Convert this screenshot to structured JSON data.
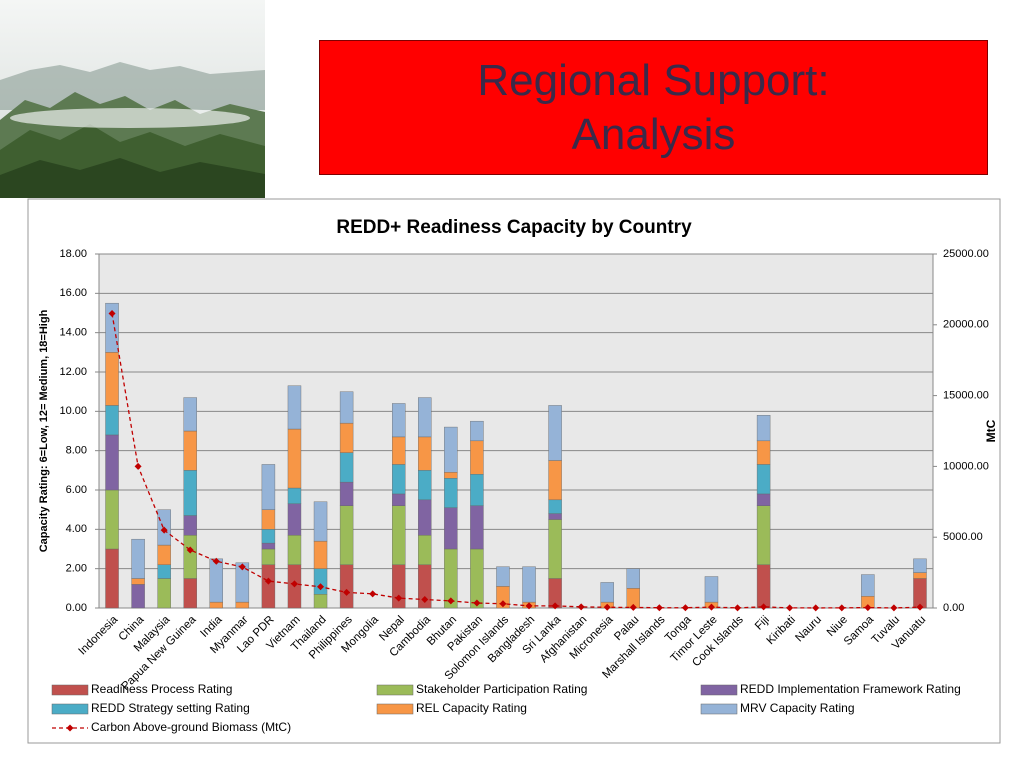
{
  "slide_title": "Regional Support: Analysis",
  "chart_data": {
    "type": "bar",
    "stacked": true,
    "title": "REDD+ Readiness Capacity by Country",
    "y_label": "Capacity Rating: 6=Low, 12= Medium, 18=High",
    "y2_label": "MtC",
    "categories": [
      "Indonesia",
      "China",
      "Malaysia",
      "Papua New Guinea",
      "India",
      "Myanmar",
      "Lao PDR",
      "Vietnam",
      "Thailand",
      "Philippines",
      "Mongolia",
      "Nepal",
      "Cambodia",
      "Bhutan",
      "Pakistan",
      "Solomon Islands",
      "Bangladesh",
      "Sri Lanka",
      "Afghanistan",
      "Micronesia",
      "Palau",
      "Marshall Islands",
      "Tonga",
      "Timor Leste",
      "Cook Islands",
      "Fiji",
      "Kiribati",
      "Nauru",
      "Niue",
      "Samoa",
      "Tuvalu",
      "Vanuatu"
    ],
    "ylim": [
      0,
      18
    ],
    "yticks": [
      {
        "value": 0,
        "label": "0.00"
      },
      {
        "value": 2,
        "label": "2.00"
      },
      {
        "value": 4,
        "label": "4.00"
      },
      {
        "value": 6,
        "label": "6.00"
      },
      {
        "value": 8,
        "label": "8.00"
      },
      {
        "value": 10,
        "label": "10.00"
      },
      {
        "value": 12,
        "label": "12.00"
      },
      {
        "value": 14,
        "label": "14.00"
      },
      {
        "value": 16,
        "label": "16.00"
      },
      {
        "value": 18,
        "label": "18.00"
      }
    ],
    "y2lim": [
      0,
      25000
    ],
    "y2ticks": [
      {
        "value": 0,
        "label": "0.00"
      },
      {
        "value": 5000,
        "label": "5000.00"
      },
      {
        "value": 10000,
        "label": "10000.00"
      },
      {
        "value": 15000,
        "label": "15000.00"
      },
      {
        "value": 20000,
        "label": "20000.00"
      },
      {
        "value": 25000,
        "label": "25000.00"
      }
    ],
    "grid": true,
    "legend": "bottom",
    "series": [
      {
        "name": "Readiness Process Rating",
        "color": "#c0504d",
        "values": [
          3,
          0,
          0,
          1.5,
          0,
          0,
          2.2,
          2.2,
          0,
          2.2,
          0,
          2.2,
          2.2,
          0,
          0,
          0,
          0,
          1.5,
          0,
          0,
          0,
          0,
          0,
          0,
          0,
          2.2,
          0,
          0,
          0,
          0,
          0,
          1.5
        ]
      },
      {
        "name": "Stakeholder Participation Rating",
        "color": "#9bbb59",
        "values": [
          3,
          0,
          1.5,
          2.2,
          0,
          0,
          0.8,
          1.5,
          0.7,
          3,
          0,
          3,
          1.5,
          3,
          3,
          0,
          0,
          3,
          0,
          0,
          0,
          0,
          0,
          0,
          0,
          3,
          0,
          0,
          0,
          0,
          0,
          0
        ]
      },
      {
        "name": "REDD Implementation Framework Rating",
        "color": "#8064a2",
        "values": [
          2.8,
          1.2,
          0,
          1,
          0,
          0,
          0.3,
          1.6,
          0,
          1.2,
          0,
          0.6,
          1.8,
          2.1,
          2.2,
          0,
          0,
          0.3,
          0,
          0,
          0,
          0,
          0,
          0,
          0,
          0.6,
          0,
          0,
          0,
          0,
          0,
          0
        ]
      },
      {
        "name": "REDD Strategy setting Rating",
        "color": "#4bacc6",
        "values": [
          1.5,
          0,
          0.7,
          2.3,
          0,
          0,
          0.7,
          0.8,
          1.3,
          1.5,
          0,
          1.5,
          1.5,
          1.5,
          1.6,
          0,
          0,
          0.7,
          0,
          0,
          0,
          0,
          0,
          0,
          0,
          1.5,
          0,
          0,
          0,
          0,
          0,
          0
        ]
      },
      {
        "name": "REL Capacity Rating",
        "color": "#f79646",
        "values": [
          2.7,
          0.3,
          1,
          2,
          0.3,
          0.3,
          1,
          3,
          1.4,
          1.5,
          0,
          1.4,
          1.7,
          0.3,
          1.7,
          1.1,
          0.3,
          2,
          0,
          0.3,
          1,
          0,
          0,
          0.3,
          0,
          1.2,
          0,
          0,
          0,
          0.6,
          0,
          0.3
        ]
      },
      {
        "name": "MRV Capacity Rating",
        "color": "#95b3d7",
        "values": [
          2.5,
          2,
          1.8,
          1.7,
          2.2,
          2,
          2.3,
          2.2,
          2,
          1.6,
          0,
          1.7,
          2,
          2.3,
          1,
          1,
          1.8,
          2.8,
          0,
          1,
          1,
          0,
          0,
          1.3,
          0,
          1.3,
          0,
          0,
          0,
          1.1,
          0,
          0.7
        ]
      },
      {
        "name": "Carbon Above-ground Biomass (MtC)",
        "type": "line",
        "axis": "y2",
        "color": "#c00000",
        "values": [
          20800,
          10000,
          5500,
          4100,
          3300,
          2900,
          1900,
          1700,
          1500,
          1100,
          1000,
          700,
          600,
          500,
          350,
          300,
          150,
          150,
          80,
          50,
          40,
          20,
          20,
          60,
          10,
          80,
          10,
          5,
          10,
          30,
          5,
          60
        ]
      }
    ]
  }
}
